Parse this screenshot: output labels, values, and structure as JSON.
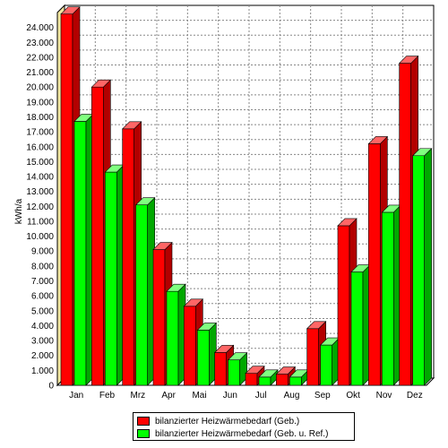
{
  "chart_data": {
    "type": "bar",
    "ylabel": "kWh/a",
    "xlabel": "",
    "ylim": [
      0,
      25000
    ],
    "yticks": [
      "0",
      "1.000",
      "2.000",
      "3.000",
      "4.000",
      "5.000",
      "6.000",
      "7.000",
      "8.000",
      "9.000",
      "10.000",
      "11.000",
      "12.000",
      "13.000",
      "14.000",
      "15.000",
      "16.000",
      "17.000",
      "18.000",
      "19.000",
      "20.000",
      "21.000",
      "22.000",
      "23.000",
      "24.000"
    ],
    "categories": [
      "Jan",
      "Feb",
      "Mrz",
      "Apr",
      "Mai",
      "Jun",
      "Jul",
      "Aug",
      "Sep",
      "Okt",
      "Nov",
      "Dez"
    ],
    "grid": true,
    "legend_position": "bottom",
    "series": [
      {
        "name": "bilanzierter Heizwärmebedarf (Geb.)",
        "color": "#ff0000",
        "values": [
          24900,
          20000,
          17200,
          9100,
          5300,
          2200,
          800,
          750,
          3800,
          10700,
          16200,
          21600
        ]
      },
      {
        "name": "bilanzierter Heizwärmebedarf (Geb. u. Ref.)",
        "color": "#00ff00",
        "values": [
          17700,
          14300,
          12100,
          6300,
          3700,
          1700,
          550,
          550,
          2700,
          7600,
          11600,
          15400
        ]
      }
    ]
  }
}
